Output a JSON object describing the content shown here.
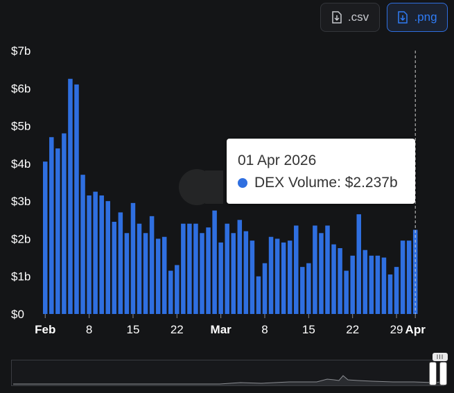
{
  "toolbar": {
    "csv_label": ".csv",
    "png_label": ".png"
  },
  "tooltip": {
    "date": "01 Apr 2026",
    "series": "DEX Volume",
    "value": "$2.237b",
    "color": "#2f6fe0"
  },
  "colors": {
    "bar": "#2f6fe0",
    "background": "#141517",
    "accent": "#2f7cf6"
  },
  "chart_data": {
    "type": "bar",
    "series_name": "DEX Volume",
    "y_ticks": [
      "$0",
      "$1b",
      "$2b",
      "$3b",
      "$4b",
      "$5b",
      "$6b",
      "$7b"
    ],
    "ylim": [
      0,
      7
    ],
    "y_unit": "billion USD",
    "x_ticks": [
      {
        "label": "Feb",
        "index": 0,
        "major": true
      },
      {
        "label": "8",
        "index": 7,
        "major": false
      },
      {
        "label": "15",
        "index": 14,
        "major": false
      },
      {
        "label": "22",
        "index": 21,
        "major": false
      },
      {
        "label": "Mar",
        "index": 28,
        "major": true
      },
      {
        "label": "8",
        "index": 35,
        "major": false
      },
      {
        "label": "15",
        "index": 42,
        "major": false
      },
      {
        "label": "22",
        "index": 49,
        "major": false
      },
      {
        "label": "29",
        "index": 56,
        "major": false
      },
      {
        "label": "Apr",
        "index": 59,
        "major": true
      }
    ],
    "dates": [
      "2026-02-01",
      "2026-02-02",
      "2026-02-03",
      "2026-02-04",
      "2026-02-05",
      "2026-02-06",
      "2026-02-07",
      "2026-02-08",
      "2026-02-09",
      "2026-02-10",
      "2026-02-11",
      "2026-02-12",
      "2026-02-13",
      "2026-02-14",
      "2026-02-15",
      "2026-02-16",
      "2026-02-17",
      "2026-02-18",
      "2026-02-19",
      "2026-02-20",
      "2026-02-21",
      "2026-02-22",
      "2026-02-23",
      "2026-02-24",
      "2026-02-25",
      "2026-02-26",
      "2026-02-27",
      "2026-02-28",
      "2026-03-01",
      "2026-03-02",
      "2026-03-03",
      "2026-03-04",
      "2026-03-05",
      "2026-03-06",
      "2026-03-07",
      "2026-03-08",
      "2026-03-09",
      "2026-03-10",
      "2026-03-11",
      "2026-03-12",
      "2026-03-13",
      "2026-03-14",
      "2026-03-15",
      "2026-03-16",
      "2026-03-17",
      "2026-03-18",
      "2026-03-19",
      "2026-03-20",
      "2026-03-21",
      "2026-03-22",
      "2026-03-23",
      "2026-03-24",
      "2026-03-25",
      "2026-03-26",
      "2026-03-27",
      "2026-03-28",
      "2026-03-29",
      "2026-03-30",
      "2026-03-31",
      "2026-04-01"
    ],
    "values": [
      4.05,
      4.7,
      4.4,
      4.8,
      6.25,
      6.1,
      3.7,
      3.15,
      3.25,
      3.15,
      3.0,
      2.45,
      2.7,
      2.15,
      2.95,
      2.4,
      2.15,
      2.6,
      2.0,
      2.05,
      1.15,
      1.3,
      2.4,
      2.4,
      2.4,
      2.15,
      2.3,
      2.75,
      1.9,
      2.4,
      2.15,
      2.5,
      2.2,
      1.95,
      1.0,
      1.35,
      2.05,
      2.0,
      1.9,
      1.95,
      2.35,
      1.25,
      1.35,
      2.35,
      2.15,
      2.35,
      1.85,
      1.75,
      1.15,
      1.55,
      2.65,
      1.7,
      1.55,
      1.55,
      1.5,
      1.05,
      1.25,
      1.95,
      1.95,
      2.237
    ],
    "highlight_index": 59
  }
}
